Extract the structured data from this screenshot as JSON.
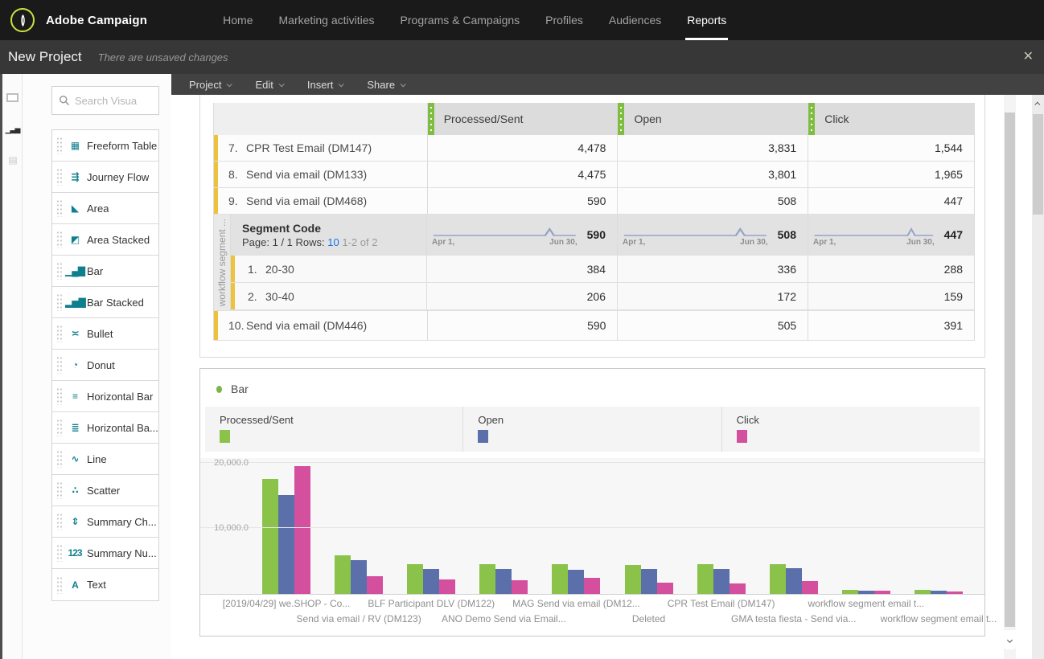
{
  "topnav": {
    "brand": "Adobe Campaign",
    "items": [
      {
        "label": "Home"
      },
      {
        "label": "Marketing activities"
      },
      {
        "label": "Programs & Campaigns"
      },
      {
        "label": "Profiles"
      },
      {
        "label": "Audiences"
      },
      {
        "label": "Reports"
      }
    ],
    "active": "Reports"
  },
  "project_bar": {
    "title": "New Project",
    "status": "There are unsaved changes",
    "close_icon": "✕"
  },
  "menubar": {
    "items": [
      {
        "label": "Project"
      },
      {
        "label": "Edit"
      },
      {
        "label": "Insert"
      },
      {
        "label": "Share"
      }
    ]
  },
  "left_rail": {
    "items": [
      {
        "name": "canvas-panel-icon"
      },
      {
        "name": "visualizations-panel-icon",
        "glyph": "▁▃▅"
      },
      {
        "name": "components-panel-icon",
        "glyph": "▤"
      }
    ]
  },
  "viz_panel": {
    "search_placeholder": "Search Visua",
    "items": [
      {
        "label": "Freeform Table",
        "icon": "freeform-table-icon",
        "glyph": "▦"
      },
      {
        "label": "Journey Flow",
        "icon": "journey-flow-icon",
        "glyph": "⇶"
      },
      {
        "label": "Area",
        "icon": "area-icon",
        "glyph": "◣"
      },
      {
        "label": "Area Stacked",
        "icon": "area-stacked-icon",
        "glyph": "◩"
      },
      {
        "label": "Bar",
        "icon": "bar-icon",
        "glyph": "▁▄▇"
      },
      {
        "label": "Bar Stacked",
        "icon": "bar-stacked-icon",
        "glyph": "▂▅▇"
      },
      {
        "label": "Bullet",
        "icon": "bullet-icon",
        "glyph": "≍"
      },
      {
        "label": "Donut",
        "icon": "donut-icon",
        "glyph": "◔"
      },
      {
        "label": "Horizontal Bar",
        "icon": "horizontal-bar-icon",
        "glyph": "≡"
      },
      {
        "label": "Horizontal Ba...",
        "icon": "horizontal-bar-stacked-icon",
        "glyph": "≣"
      },
      {
        "label": "Line",
        "icon": "line-icon",
        "glyph": "∿"
      },
      {
        "label": "Scatter",
        "icon": "scatter-icon",
        "glyph": "∴"
      },
      {
        "label": "Summary Ch...",
        "icon": "summary-change-icon",
        "glyph": "⇕"
      },
      {
        "label": "Summary Nu...",
        "icon": "summary-number-icon",
        "glyph": "123"
      },
      {
        "label": "Text",
        "icon": "text-icon",
        "glyph": "A"
      }
    ]
  },
  "table": {
    "columns": [
      {
        "label": "Processed/Sent"
      },
      {
        "label": "Open"
      },
      {
        "label": "Click"
      }
    ],
    "rows_top": [
      {
        "num": "7.",
        "label": "CPR Test Email (DM147)",
        "values": [
          "4,478",
          "3,831",
          "1,544"
        ]
      },
      {
        "num": "8.",
        "label": "Send via email (DM133)",
        "values": [
          "4,475",
          "3,801",
          "1,965"
        ]
      },
      {
        "num": "9.",
        "label": "Send via email (DM468)",
        "values": [
          "590",
          "508",
          "447"
        ]
      }
    ],
    "segment": {
      "side_label": "workflow segment ...",
      "title": "Segment Code",
      "page_label": "Page:",
      "page_value": "1 / 1",
      "rows_label": "Rows:",
      "rows_value": "10",
      "range_text": "1-2 of 2",
      "spark_start": "Apr 1,",
      "spark_end": "Jun 30,",
      "totals": [
        "590",
        "508",
        "447"
      ],
      "rows": [
        {
          "num": "1.",
          "label": "20-30",
          "values": [
            "384",
            "336",
            "288"
          ]
        },
        {
          "num": "2.",
          "label": "30-40",
          "values": [
            "206",
            "172",
            "159"
          ]
        }
      ]
    },
    "rows_bottom": [
      {
        "num": "10.",
        "label": "Send via email (DM446)",
        "values": [
          "590",
          "505",
          "391"
        ]
      }
    ]
  },
  "bar_panel": {
    "title": "Bar"
  },
  "chart_data": {
    "type": "bar",
    "title": "Bar",
    "categories": [
      "[2019/04/29] we.SHOP - Co...",
      "Send via email / RV (DM123)",
      "BLF Participant DLV (DM122)",
      "ANO Demo Send via Email...",
      "MAG Send via email (DM12...",
      "Deleted",
      "CPR Test Email (DM147)",
      "GMA testa fiesta - Send via...",
      "workflow segment email t...",
      "workflow segment email t..."
    ],
    "series": [
      {
        "name": "Processed/Sent",
        "color": "#8bc34a",
        "values": [
          17500,
          5900,
          4500,
          4500,
          4500,
          4400,
          4478,
          4500,
          590,
          590
        ]
      },
      {
        "name": "Open",
        "color": "#5b6fab",
        "values": [
          15000,
          5100,
          3800,
          3800,
          3700,
          3800,
          3831,
          3900,
          508,
          505
        ]
      },
      {
        "name": "Click",
        "color": "#d4509f",
        "values": [
          19400,
          2700,
          2200,
          2100,
          2400,
          1700,
          1544,
          2000,
          447,
          391
        ]
      }
    ],
    "ylim": [
      0,
      20800
    ],
    "yticks": [
      {
        "value": 10000,
        "label": "10,000.0"
      },
      {
        "value": 20000,
        "label": "20,000.0"
      }
    ],
    "xlabel": "",
    "ylabel": "",
    "legend_position": "top",
    "grid": "horizontal"
  }
}
